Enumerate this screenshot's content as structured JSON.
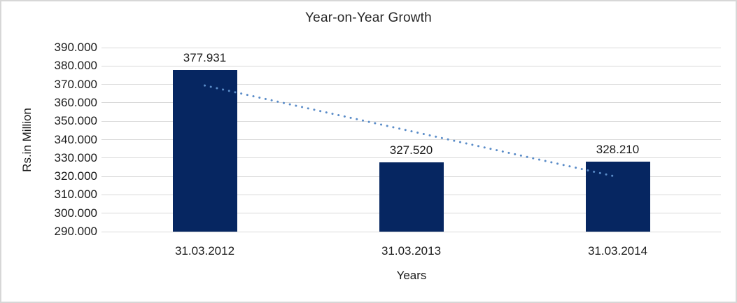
{
  "frame": {
    "background": "#ffffff",
    "border_color": "#d7d7d7"
  },
  "chart_data": {
    "type": "bar",
    "title": "Year-on-Year Growth",
    "categories": [
      "31.03.2012",
      "31.03.2013",
      "31.03.2014"
    ],
    "values": [
      377.931,
      327.52,
      328.21
    ],
    "data_labels": [
      "377.931",
      "327.520",
      "328.210"
    ],
    "xlabel": "Years",
    "ylabel": "Rs.in Million",
    "ylim": [
      290,
      390
    ],
    "ytick_step": 10,
    "ytick_labels": [
      "390.000",
      "380.000",
      "370.000",
      "360.000",
      "350.000",
      "340.000",
      "330.000",
      "320.000",
      "310.000",
      "300.000",
      "290.000"
    ],
    "grid": true,
    "legend": "none",
    "colors": {
      "bar": "#062661",
      "gridline": "#d9d9d9",
      "text": "#1a1a1a",
      "trendline": "#5a8cc8"
    },
    "trendline": {
      "type": "linear",
      "style": "dotted",
      "start_value": 369.41,
      "end_value": 319.69
    }
  }
}
